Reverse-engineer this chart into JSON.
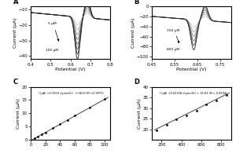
{
  "fig_width": 3.0,
  "fig_height": 2.0,
  "background_color": "#ffffff",
  "panel_A": {
    "label": "A",
    "xlabel": "Potential (V)",
    "ylabel": "Current (μA)",
    "xlim": [
      0.4,
      0.8
    ],
    "ylim": [
      -42,
      -8
    ],
    "xticks": [
      0.4,
      0.5,
      0.6,
      0.7,
      0.8
    ],
    "yticks": [
      -40,
      -30,
      -20,
      -10
    ],
    "n_curves": 8,
    "ann_top": "5 μM",
    "ann_bot": "100 μM"
  },
  "panel_B": {
    "label": "B",
    "xlabel": "Potential (V)",
    "ylabel": "Current (μA)",
    "xlim": [
      0.45,
      0.8
    ],
    "ylim": [
      -105,
      0
    ],
    "xticks": [
      0.45,
      0.55,
      0.65,
      0.75
    ],
    "yticks": [
      -100,
      -80,
      -60,
      -40,
      -20,
      0
    ],
    "n_curves": 6,
    "ann_top": "150 μM",
    "ann_bot": "800 μM"
  },
  "panel_C": {
    "label": "C",
    "xlabel": "",
    "ylabel": "Current (μA)",
    "xlim": [
      0,
      108
    ],
    "ylim": [
      0,
      20
    ],
    "xticks": [
      0,
      20,
      40,
      60,
      80,
      100
    ],
    "yticks": [
      0,
      5,
      10,
      15,
      20
    ],
    "equation": "I (μA) =0.1559 c(μmol/L) - 0.3633 (R²=0.9973)",
    "x_data": [
      5,
      10,
      15,
      20,
      30,
      40,
      50,
      60,
      80,
      100
    ],
    "y_data": [
      0.45,
      1.2,
      2.0,
      2.8,
      4.4,
      5.9,
      7.5,
      9.1,
      12.2,
      15.3
    ],
    "slope": 0.1559,
    "intercept": -0.3633
  },
  "panel_D": {
    "label": "D",
    "xlabel": "",
    "ylabel": "Current (μA)",
    "xlim": [
      100,
      900
    ],
    "ylim": [
      15,
      40
    ],
    "xticks": [
      200,
      400,
      600,
      800
    ],
    "yticks": [
      20,
      25,
      30,
      35,
      40
    ],
    "equation": "I (μA) =0.02328 c(μmol/L) + 16.63 (R²= 0.9594)",
    "x_data": [
      150,
      250,
      350,
      450,
      550,
      650,
      750,
      850
    ],
    "y_data": [
      19.5,
      22.0,
      24.5,
      26.5,
      28.8,
      31.5,
      33.5,
      36.0
    ],
    "slope": 0.02328,
    "intercept": 16.63
  }
}
